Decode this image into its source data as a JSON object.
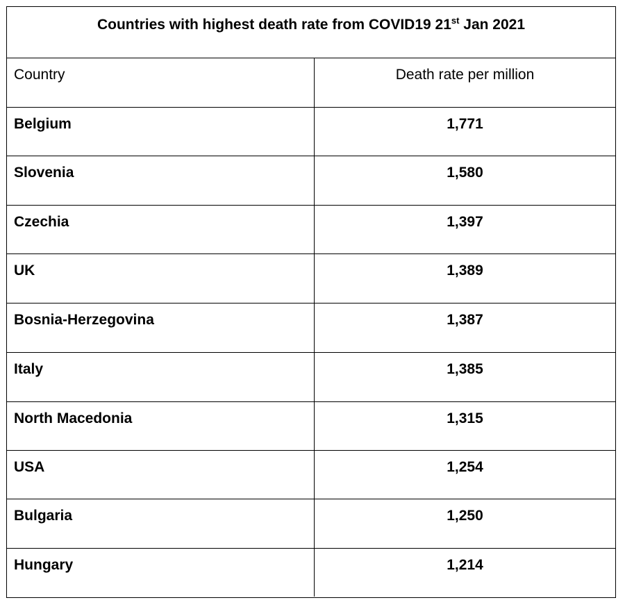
{
  "chart_data": {
    "type": "table",
    "title": "Countries with highest death rate from COVID19 21",
    "title_superscript": "st",
    "title_suffix": " Jan 2021",
    "columns": [
      "Country",
      "Death rate per million"
    ],
    "rows": [
      {
        "country": "Belgium",
        "value": "1,771"
      },
      {
        "country": "Slovenia",
        "value": "1,580"
      },
      {
        "country": "Czechia",
        "value": "1,397"
      },
      {
        "country": "UK",
        "value": "1,389"
      },
      {
        "country": "Bosnia-Herzegovina",
        "value": "1,387"
      },
      {
        "country": "Italy",
        "value": "1,385"
      },
      {
        "country": "North Macedonia",
        "value": "1,315"
      },
      {
        "country": "USA",
        "value": "1,254"
      },
      {
        "country": "Bulgaria",
        "value": "1,250"
      },
      {
        "country": "Hungary",
        "value": "1,214"
      }
    ]
  }
}
